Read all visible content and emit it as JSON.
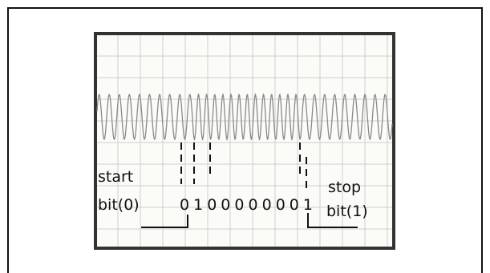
{
  "annotations": {
    "start_label": [
      "start",
      "bit(0)"
    ],
    "bit_sequence": "0100000001",
    "stop_label": [
      "stop",
      "bit(1)"
    ]
  }
}
